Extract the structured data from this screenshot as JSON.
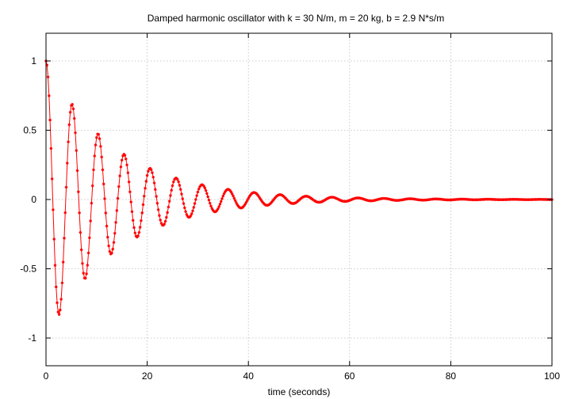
{
  "chart_data": {
    "type": "scatter",
    "title": "Damped harmonic oscillator with k = 30 N/m, m = 20 kg, b = 2.9 N*s/m",
    "xlabel": "time (seconds)",
    "ylabel": "",
    "xlim": [
      0,
      100
    ],
    "ylim": [
      -1.2,
      1.2
    ],
    "xticks": [
      0,
      20,
      40,
      60,
      80,
      100
    ],
    "yticks": [
      -1,
      -0.5,
      0,
      0.5,
      1
    ],
    "xtick_labels": [
      "0",
      "20",
      "40",
      "60",
      "80",
      "100"
    ],
    "ytick_labels": [
      "-1",
      "-0.5",
      "0",
      "0.5",
      "1"
    ],
    "grid": true,
    "legend": "none",
    "parameters": {
      "k": 30,
      "m": 20,
      "b": 2.9
    },
    "sample": {
      "t_start": 0,
      "t_end": 100,
      "dt": 0.2,
      "y0": 1
    },
    "series": [
      {
        "color": "#ff0000",
        "marker": "star",
        "line": true,
        "x": [],
        "y": []
      }
    ]
  }
}
